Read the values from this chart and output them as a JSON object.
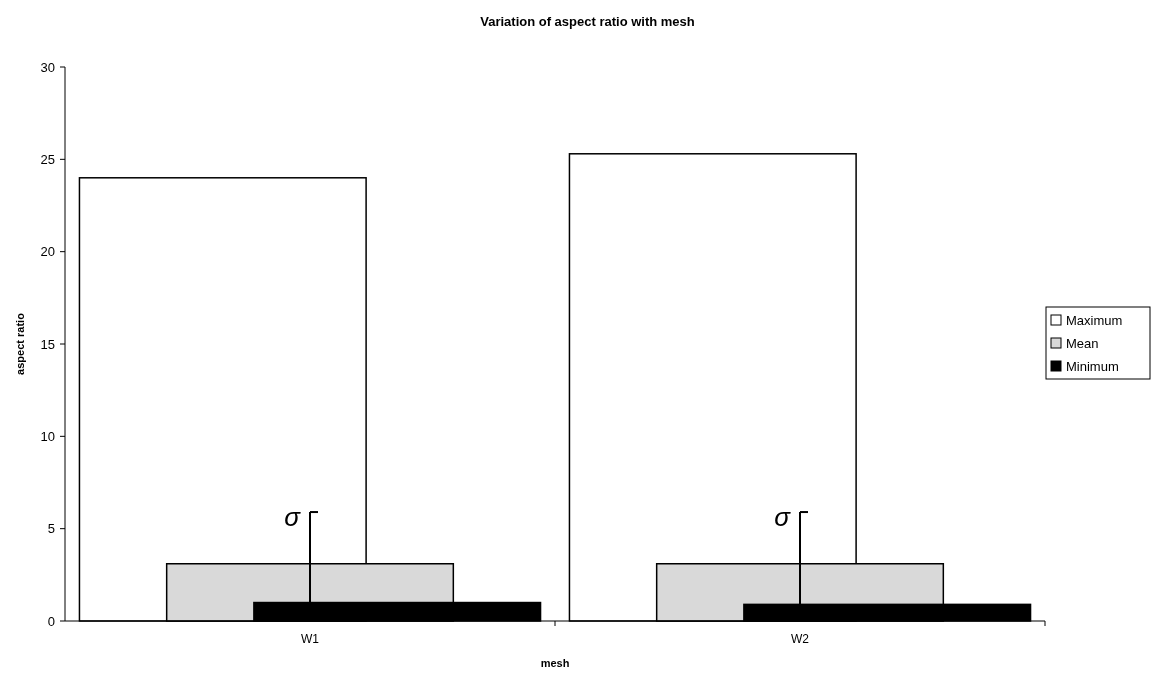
{
  "chart_data": {
    "type": "bar",
    "title": "Variation of aspect ratio with mesh",
    "xlabel": "mesh",
    "ylabel": "aspect ratio",
    "categories": [
      "W1",
      "W2"
    ],
    "series": [
      {
        "name": "Maximum",
        "color": "#ffffff",
        "values": [
          24,
          25.3
        ]
      },
      {
        "name": "Mean",
        "color": "#d9d9d9",
        "values": [
          3.1,
          3.1
        ],
        "errors": [
          2.8,
          2.8
        ]
      },
      {
        "name": "Minimum",
        "color": "#000000",
        "values": [
          1,
          0.9
        ]
      }
    ],
    "ylim": [
      0,
      30
    ],
    "yticks": [
      0,
      5,
      10,
      15,
      20,
      25,
      30
    ],
    "legend": "right",
    "annotations": [
      {
        "text": "σ",
        "x": "W1",
        "y": 6
      },
      {
        "text": "σ",
        "x": "W2",
        "y": 6
      }
    ]
  }
}
